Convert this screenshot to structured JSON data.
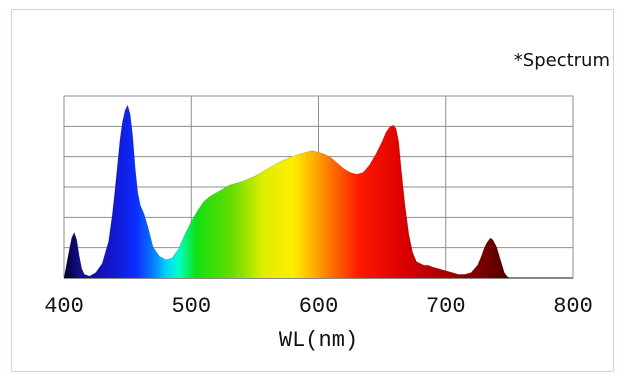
{
  "caption": "*Spectrum",
  "chart_data": {
    "type": "area",
    "title": "",
    "xlabel": "WL(nm)",
    "ylabel": "",
    "xlim": [
      400,
      800
    ],
    "ylim": [
      0,
      1
    ],
    "x_ticks": [
      400,
      500,
      600,
      700,
      800
    ],
    "y_gridlines": 6,
    "grid": true,
    "legend": "none",
    "series": [
      {
        "x": [
          400,
          404,
          406,
          408,
          410,
          412,
          414,
          416,
          420,
          425,
          430,
          435,
          438,
          440,
          442,
          444,
          446,
          448,
          450,
          452,
          454,
          456,
          458,
          460,
          463,
          466,
          470,
          475,
          480,
          485,
          490,
          495,
          500,
          505,
          510,
          515,
          520,
          525,
          530,
          540,
          550,
          560,
          570,
          580,
          590,
          595,
          600,
          605,
          610,
          615,
          620,
          625,
          630,
          635,
          640,
          645,
          650,
          653,
          656,
          659,
          661,
          663,
          665,
          668,
          671,
          674,
          677,
          680,
          683,
          686,
          690,
          695,
          700,
          705,
          710,
          715,
          720,
          725,
          728,
          730,
          732,
          735,
          737,
          740,
          743,
          746,
          748,
          750,
          800
        ],
        "y": [
          0.0,
          0.15,
          0.22,
          0.25,
          0.21,
          0.12,
          0.05,
          0.02,
          0.01,
          0.03,
          0.08,
          0.2,
          0.35,
          0.48,
          0.62,
          0.76,
          0.86,
          0.92,
          0.95,
          0.9,
          0.78,
          0.6,
          0.47,
          0.4,
          0.35,
          0.28,
          0.17,
          0.12,
          0.1,
          0.11,
          0.16,
          0.24,
          0.31,
          0.37,
          0.42,
          0.45,
          0.47,
          0.49,
          0.51,
          0.53,
          0.56,
          0.6,
          0.64,
          0.67,
          0.69,
          0.7,
          0.69,
          0.68,
          0.66,
          0.63,
          0.6,
          0.58,
          0.57,
          0.58,
          0.62,
          0.68,
          0.75,
          0.8,
          0.83,
          0.84,
          0.82,
          0.75,
          0.6,
          0.4,
          0.24,
          0.14,
          0.09,
          0.08,
          0.07,
          0.07,
          0.06,
          0.05,
          0.04,
          0.03,
          0.02,
          0.02,
          0.03,
          0.07,
          0.12,
          0.16,
          0.19,
          0.22,
          0.21,
          0.17,
          0.1,
          0.03,
          0.01,
          0.0,
          0.0
        ]
      }
    ]
  }
}
